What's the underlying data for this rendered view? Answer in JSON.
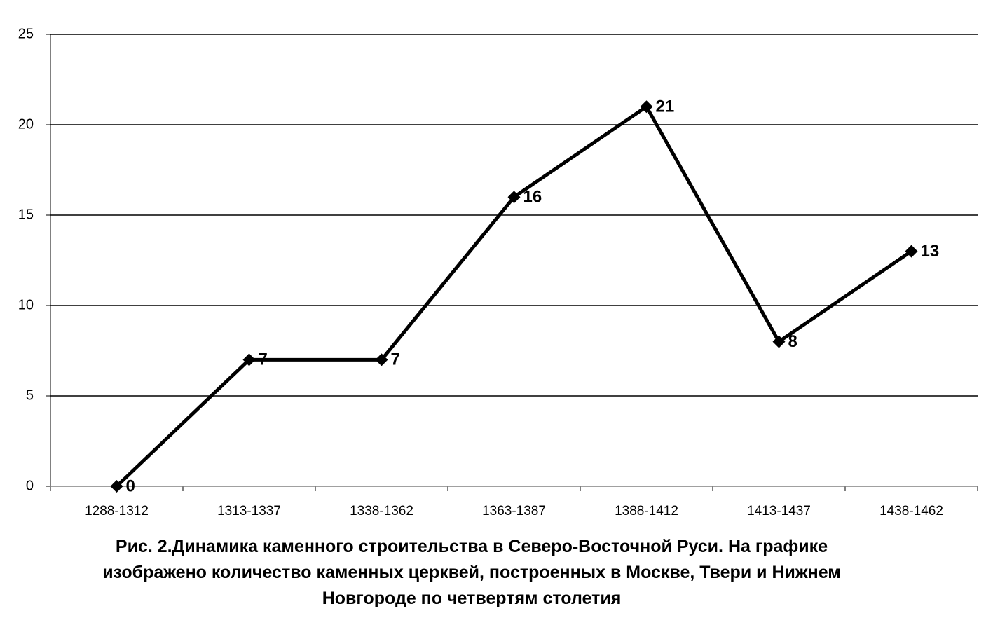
{
  "chart_data": {
    "type": "line",
    "title": "Рис. 2.Динамика каменного строительства в Северо-Восточной Руси. На графике изображено количество каменных церквей, построенных в Москве, Твери и Нижнем Новгороде по четвертям столетия",
    "categories": [
      "1288-1312",
      "1313-1337",
      "1338-1362",
      "1363-1387",
      "1388-1412",
      "1413-1437",
      "1438-1462"
    ],
    "values": [
      0,
      7,
      7,
      16,
      21,
      8,
      13
    ],
    "color": "#000000",
    "ylim": [
      0,
      25
    ],
    "yticks": [
      0,
      5,
      10,
      15,
      20,
      25
    ],
    "grid": true
  }
}
